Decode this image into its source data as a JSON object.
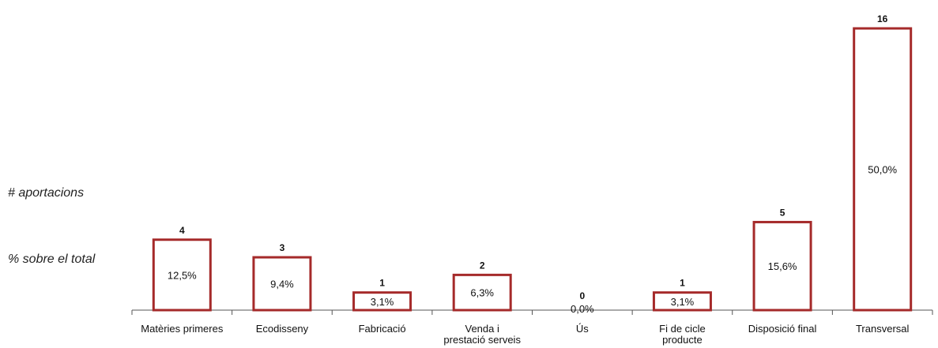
{
  "legend": {
    "count_label": "# aportacions",
    "pct_label": "% sobre el total"
  },
  "chart_data": {
    "type": "bar",
    "categories": [
      [
        "Matèries primeres"
      ],
      [
        "Ecodisseny"
      ],
      [
        "Fabricació"
      ],
      [
        "Venda i",
        "prestació serveis"
      ],
      [
        "Ús"
      ],
      [
        "Fi de cicle",
        "producte"
      ],
      [
        "Disposició final"
      ],
      [
        "Transversal"
      ]
    ],
    "values": [
      4,
      3,
      1,
      2,
      0,
      1,
      5,
      16
    ],
    "percentages": [
      "12,5%",
      "9,4%",
      "3,1%",
      "6,3%",
      "0,0%",
      "3,1%",
      "15,6%",
      "50,0%"
    ],
    "ylim": [
      0,
      16
    ],
    "grid": false,
    "bar_fill": "#ffffff",
    "bar_stroke": "#a52a2a"
  }
}
